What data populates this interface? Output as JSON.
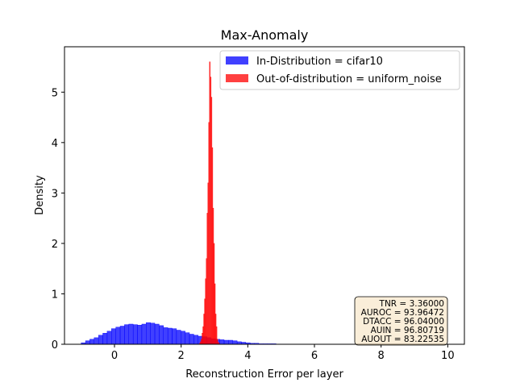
{
  "chart_data": {
    "type": "histogram",
    "title": "Max-Anomaly",
    "xlabel": "Reconstruction Error per layer",
    "ylabel": "Density",
    "xlim": [
      -1.5,
      10.5
    ],
    "ylim": [
      0,
      5.9
    ],
    "xticks": [
      0,
      2,
      4,
      6,
      8,
      10
    ],
    "yticks": [
      0,
      1,
      2,
      3,
      4,
      5
    ],
    "grid": false,
    "legend_position": "top-right",
    "series": [
      {
        "name": "In-Distribution = cifar10",
        "color": "#0000ff",
        "bin_width": 0.13,
        "bin_start": -1.0,
        "values": [
          0.03,
          0.07,
          0.1,
          0.13,
          0.18,
          0.22,
          0.26,
          0.31,
          0.34,
          0.36,
          0.39,
          0.4,
          0.39,
          0.38,
          0.4,
          0.43,
          0.42,
          0.4,
          0.37,
          0.33,
          0.32,
          0.31,
          0.28,
          0.26,
          0.23,
          0.2,
          0.18,
          0.16,
          0.15,
          0.13,
          0.11,
          0.1,
          0.09,
          0.08,
          0.08,
          0.07,
          0.05,
          0.04,
          0.03,
          0.02,
          0.02,
          0.01,
          0.01,
          0.01,
          0.01,
          0.005,
          0.005,
          0.005,
          0.003,
          0.003,
          0.002,
          0.002
        ]
      },
      {
        "name": "Out-of-distribution = uniform_noise",
        "color": "#ff0000",
        "bin_width": 0.025,
        "bin_start": 2.55,
        "values": [
          0.02,
          0.05,
          0.1,
          0.22,
          0.35,
          0.6,
          0.9,
          1.3,
          1.7,
          2.6,
          3.2,
          4.4,
          5.6,
          5.3,
          4.9,
          3.9,
          2.7,
          2.0,
          1.2,
          0.6,
          0.35,
          0.1,
          0.04,
          0.02
        ]
      }
    ],
    "stats": {
      "lines": [
        "TNR = 3.36000",
        "AUROC = 93.96472",
        "DTACC = 96.04000",
        "AUIN = 96.80719",
        "AUOUT = 83.22535"
      ]
    }
  }
}
